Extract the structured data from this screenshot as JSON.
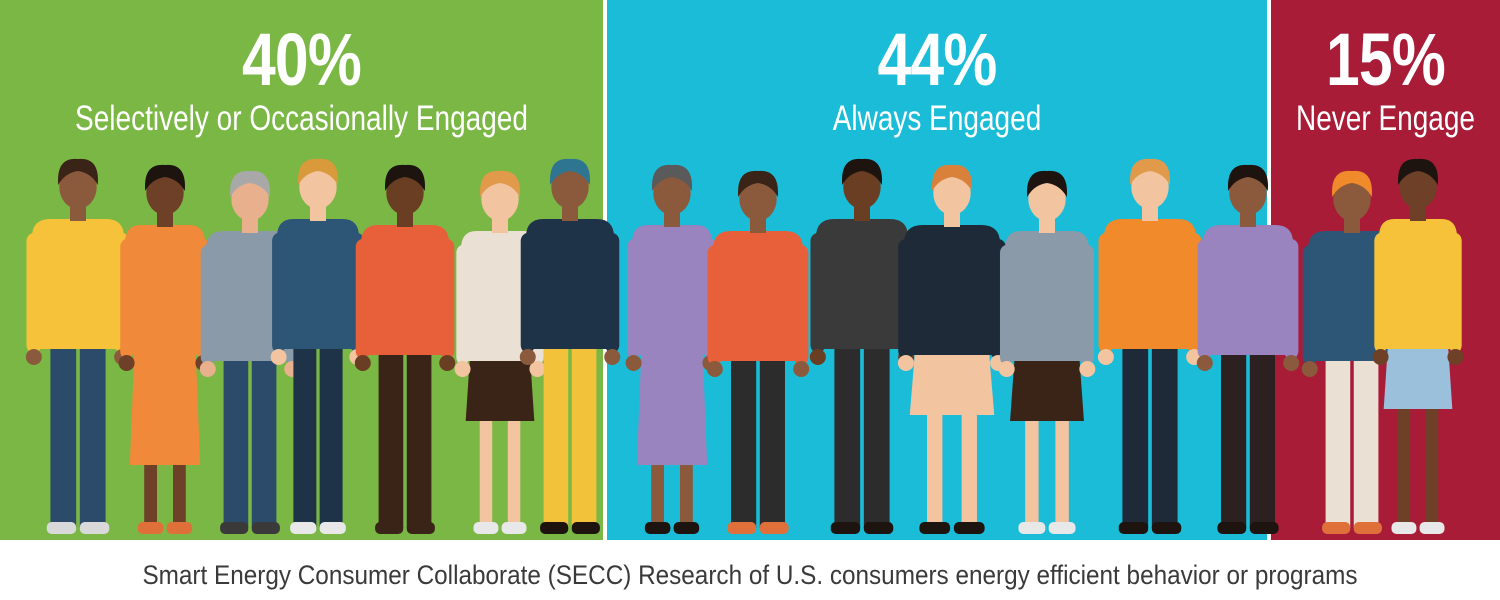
{
  "chart_data": {
    "type": "bar",
    "stacked_horizontal": true,
    "categories": [
      "Selectively or Occasionally Engaged",
      "Always Engaged",
      "Never Engage"
    ],
    "values": [
      40,
      44,
      15
    ],
    "value_labels": [
      "40%",
      "44%",
      "15%"
    ],
    "colors": [
      "#7ab744",
      "#1bbcd8",
      "#a81c38"
    ],
    "caption": "Smart Energy Consumer Collaborate (SECC) Research of U.S. consumers energy efficient behavior or programs"
  },
  "people": [
    {
      "shirt": "#f5c23a",
      "pants": "#2c4a6a",
      "skin": "#8b5a3c",
      "hair": "#3a2418",
      "shoes": "#d9d9d9",
      "accent": "none"
    },
    {
      "shirt": "#f08a3a",
      "pants": "#7a4a30",
      "skin": "#6e4028",
      "hair": "#1d1410",
      "shoes": "#e0703a",
      "accent": "dress"
    },
    {
      "shirt": "#8a9aa8",
      "pants": "#2c4a6a",
      "skin": "#e8b08c",
      "hair": "#a8a8a8",
      "shoes": "#3a3a3a",
      "accent": "none"
    },
    {
      "shirt": "#2d5575",
      "pants": "#1f3348",
      "skin": "#f2c4a0",
      "hair": "#d99a3c",
      "shoes": "#e8e8e8",
      "accent": "none"
    },
    {
      "shirt": "#e8603a",
      "pants": "#3a2418",
      "skin": "#6a3e22",
      "hair": "#1d1410",
      "shoes": "#3a2418",
      "accent": "none"
    },
    {
      "shirt": "#ebe0d4",
      "pants": "#3a2418",
      "skin": "#f2c4a0",
      "hair": "#e09a4a",
      "shoes": "#e8e8e8",
      "accent": "skirt"
    },
    {
      "shirt": "#1f3348",
      "pants": "#f2c23a",
      "skin": "#8b5a3c",
      "hair": "#2d7590",
      "shoes": "#1d1410",
      "accent": "none"
    },
    {
      "shirt": "#9a84c0",
      "pants": "#1f3348",
      "skin": "#8b5a3c",
      "hair": "#5a5a5a",
      "shoes": "#1d1410",
      "accent": "dress"
    },
    {
      "shirt": "#e8603a",
      "pants": "#2c2c2c",
      "skin": "#8b5a3c",
      "hair": "#3a2418",
      "shoes": "#e0703a",
      "accent": "none"
    },
    {
      "shirt": "#3a3a3a",
      "pants": "#2c2c2c",
      "skin": "#6a3e22",
      "hair": "#1d1410",
      "shoes": "#1d1410",
      "accent": "none"
    },
    {
      "shirt": "#1f2a38",
      "pants": "#f2c4a0",
      "skin": "#f2c4a0",
      "hair": "#d9813a",
      "shoes": "#1d1410",
      "accent": "skirt"
    },
    {
      "shirt": "#8a9aa8",
      "pants": "#3a2418",
      "skin": "#f2c4a0",
      "hair": "#1d1410",
      "shoes": "#e8e8e8",
      "accent": "skirt"
    },
    {
      "shirt": "#f08a2a",
      "pants": "#1f2a38",
      "skin": "#f2c4a0",
      "hair": "#e09a4a",
      "shoes": "#1d1410",
      "accent": "none"
    },
    {
      "shirt": "#9a84c0",
      "pants": "#2c2020",
      "skin": "#8b5a3c",
      "hair": "#1d1410",
      "shoes": "#1d1410",
      "accent": "none"
    },
    {
      "shirt": "#2d5575",
      "pants": "#ebe0d4",
      "skin": "#8b5a3c",
      "hair": "#f08a2a",
      "shoes": "#e0703a",
      "accent": "none"
    },
    {
      "shirt": "#f5c23a",
      "pants": "#9ac0dc",
      "skin": "#6e4028",
      "hair": "#1d1410",
      "shoes": "#e8e8e8",
      "accent": "skirt"
    }
  ]
}
